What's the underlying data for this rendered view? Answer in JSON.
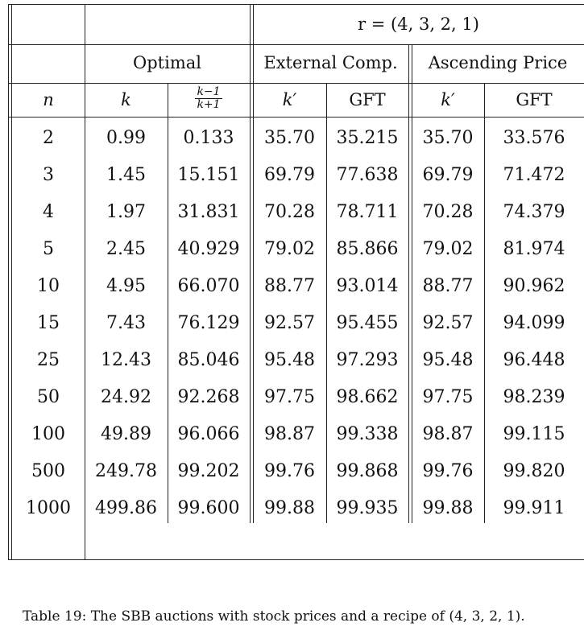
{
  "table": {
    "group_header": "r = (4, 3, 2, 1)",
    "groups": [
      "Optimal",
      "External Comp.",
      "Ascending Price"
    ],
    "columns": {
      "n": "n",
      "k": "k",
      "frac_num": "k−1",
      "frac_den": "k+1",
      "ext_kprime": "k′",
      "ext_gft": "GFT",
      "asc_kprime": "k′",
      "asc_gft": "GFT"
    },
    "rows": [
      [
        "2",
        "0.99",
        "0.133",
        "35.70",
        "35.215",
        "35.70",
        "33.576"
      ],
      [
        "3",
        "1.45",
        "15.151",
        "69.79",
        "77.638",
        "69.79",
        "71.472"
      ],
      [
        "4",
        "1.97",
        "31.831",
        "70.28",
        "78.711",
        "70.28",
        "74.379"
      ],
      [
        "5",
        "2.45",
        "40.929",
        "79.02",
        "85.866",
        "79.02",
        "81.974"
      ],
      [
        "10",
        "4.95",
        "66.070",
        "88.77",
        "93.014",
        "88.77",
        "90.962"
      ],
      [
        "15",
        "7.43",
        "76.129",
        "92.57",
        "95.455",
        "92.57",
        "94.099"
      ],
      [
        "25",
        "12.43",
        "85.046",
        "95.48",
        "97.293",
        "95.48",
        "96.448"
      ],
      [
        "50",
        "24.92",
        "92.268",
        "97.75",
        "98.662",
        "97.75",
        "98.239"
      ],
      [
        "100",
        "49.89",
        "96.066",
        "98.87",
        "99.338",
        "98.87",
        "99.115"
      ],
      [
        "500",
        "249.78",
        "99.202",
        "99.76",
        "99.868",
        "99.76",
        "99.820"
      ],
      [
        "1000",
        "499.86",
        "99.600",
        "99.88",
        "99.935",
        "99.88",
        "99.911"
      ]
    ]
  },
  "caption": "Table 19:  The SBB auctions with stock prices and a recipe of (4, 3, 2, 1)."
}
